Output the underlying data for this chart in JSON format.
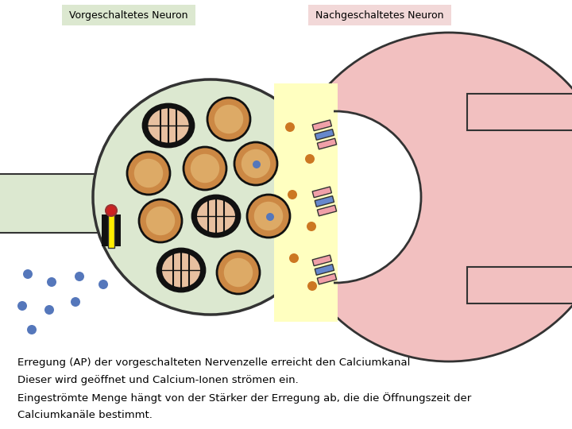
{
  "bg_color": "#ffffff",
  "title_left": "Vorgeschaltetes Neuron",
  "title_right": "Nachgeschaltetes Neuron",
  "title_left_bg": "#dce8d0",
  "title_right_bg": "#f2d8d8",
  "axon_color": "#dce8d0",
  "terminal_color": "#dce8d0",
  "terminal_outline": "#333333",
  "synaptic_cleft_color": "#ffffc0",
  "postsynaptic_color": "#f2c0c0",
  "postsynaptic_outline": "#333333",
  "vesicle_fill": "#cc8844",
  "vesicle_inner": "#ddaa66",
  "mito_color": "#111111",
  "mito_fill": "#cc8844",
  "mito_inner": "#e8c0a0",
  "ca_dot_color": "#5577bb",
  "cleft_dot_color": "#cc7722",
  "channel_pink": "#f0a0a8",
  "channel_blue": "#6688cc",
  "text1": "Erregung (AP) der vorgeschalteten Nervenzelle erreicht den Calciumkanal",
  "text2": "Dieser wird geöffnet und Calcium-Ionen strömen ein.",
  "text3": "Eingeströmte Menge hängt von der Stärker der Erregung ab, die die Öffnungszeit der",
  "text4": "Calciumkanäle bestimmt."
}
